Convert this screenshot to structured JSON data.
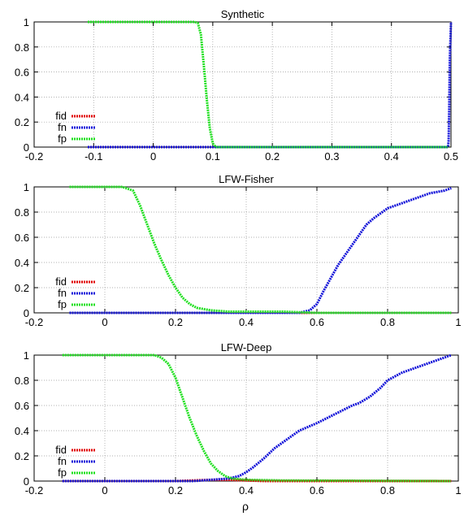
{
  "colors": {
    "fid": "#e00000",
    "fn": "#1010d8",
    "fp": "#20e020"
  },
  "xlabel": "ρ",
  "chart_data": [
    {
      "type": "line",
      "title": "Synthetic",
      "xlim": [
        -0.2,
        0.5
      ],
      "ylim": [
        0,
        1
      ],
      "xticks": [
        -0.2,
        -0.1,
        0,
        0.1,
        0.2,
        0.3,
        0.4,
        0.5
      ],
      "xtick_labels": [
        "-0.2",
        "-0.1",
        "0",
        "0.1",
        "0.2",
        "0.3",
        "0.4",
        "0.5"
      ],
      "yticks": [
        0,
        0.2,
        0.4,
        0.6,
        0.8,
        1
      ],
      "ytick_labels": [
        "0",
        "0.2",
        "0.4",
        "0.6",
        "0.8",
        "1"
      ],
      "grid": true,
      "legend_position": "bottom-left",
      "series": [
        {
          "name": "fid",
          "color_key": "fid",
          "points": [
            [
              -0.11,
              0
            ],
            [
              0.495,
              0
            ]
          ]
        },
        {
          "name": "fn",
          "color_key": "fn",
          "points": [
            [
              -0.11,
              0
            ],
            [
              0.495,
              0
            ],
            [
              0.496,
              0.05
            ],
            [
              0.497,
              0.3
            ],
            [
              0.498,
              0.7
            ],
            [
              0.5,
              1
            ]
          ]
        },
        {
          "name": "fp",
          "color_key": "fp",
          "points": [
            [
              -0.11,
              1
            ],
            [
              0.07,
              1
            ],
            [
              0.075,
              0.99
            ],
            [
              0.08,
              0.9
            ],
            [
              0.085,
              0.65
            ],
            [
              0.09,
              0.38
            ],
            [
              0.095,
              0.15
            ],
            [
              0.1,
              0.03
            ],
            [
              0.105,
              0
            ],
            [
              0.495,
              0
            ]
          ]
        }
      ]
    },
    {
      "type": "line",
      "title": "LFW-Fisher",
      "xlim": [
        -0.2,
        1
      ],
      "ylim": [
        0,
        1
      ],
      "xticks": [
        -0.2,
        0,
        0.2,
        0.4,
        0.6,
        0.8,
        1
      ],
      "xtick_labels": [
        "-0.2",
        "0",
        "0.2",
        "0.4",
        "0.6",
        "0.8",
        "1"
      ],
      "yticks": [
        0,
        0.2,
        0.4,
        0.6,
        0.8,
        1
      ],
      "ytick_labels": [
        "0",
        "0.2",
        "0.4",
        "0.6",
        "0.8",
        "1"
      ],
      "grid": true,
      "legend_position": "bottom-left",
      "series": [
        {
          "name": "fid",
          "color_key": "fid",
          "points": [
            [
              -0.1,
              0
            ],
            [
              0.98,
              0
            ]
          ]
        },
        {
          "name": "fn",
          "color_key": "fn",
          "points": [
            [
              -0.1,
              0
            ],
            [
              0.55,
              0
            ],
            [
              0.58,
              0.02
            ],
            [
              0.6,
              0.07
            ],
            [
              0.62,
              0.18
            ],
            [
              0.64,
              0.28
            ],
            [
              0.66,
              0.38
            ],
            [
              0.68,
              0.46
            ],
            [
              0.7,
              0.54
            ],
            [
              0.72,
              0.62
            ],
            [
              0.74,
              0.7
            ],
            [
              0.76,
              0.75
            ],
            [
              0.78,
              0.79
            ],
            [
              0.8,
              0.83
            ],
            [
              0.84,
              0.87
            ],
            [
              0.88,
              0.91
            ],
            [
              0.92,
              0.95
            ],
            [
              0.96,
              0.97
            ],
            [
              0.98,
              0.99
            ]
          ]
        },
        {
          "name": "fp",
          "color_key": "fp",
          "points": [
            [
              -0.1,
              1
            ],
            [
              0.05,
              1
            ],
            [
              0.08,
              0.97
            ],
            [
              0.1,
              0.85
            ],
            [
              0.12,
              0.7
            ],
            [
              0.14,
              0.55
            ],
            [
              0.16,
              0.42
            ],
            [
              0.18,
              0.3
            ],
            [
              0.2,
              0.2
            ],
            [
              0.22,
              0.12
            ],
            [
              0.24,
              0.07
            ],
            [
              0.26,
              0.04
            ],
            [
              0.3,
              0.02
            ],
            [
              0.35,
              0.01
            ],
            [
              0.4,
              0.01
            ],
            [
              0.5,
              0.01
            ],
            [
              0.6,
              0
            ],
            [
              0.98,
              0
            ]
          ]
        }
      ]
    },
    {
      "type": "line",
      "title": "LFW-Deep",
      "xlim": [
        -0.2,
        1
      ],
      "ylim": [
        0,
        1
      ],
      "xticks": [
        -0.2,
        0,
        0.2,
        0.4,
        0.6,
        0.8,
        1
      ],
      "xtick_labels": [
        "-0.2",
        "0",
        "0.2",
        "0.4",
        "0.6",
        "0.8",
        "1"
      ],
      "yticks": [
        0,
        0.2,
        0.4,
        0.6,
        0.8,
        1
      ],
      "ytick_labels": [
        "0",
        "0.2",
        "0.4",
        "0.6",
        "0.8",
        "1"
      ],
      "grid": true,
      "legend_position": "bottom-left",
      "series": [
        {
          "name": "fid",
          "color_key": "fid",
          "points": [
            [
              -0.12,
              0
            ],
            [
              0.2,
              0
            ],
            [
              0.25,
              0.005
            ],
            [
              0.3,
              0.01
            ],
            [
              0.35,
              0.01
            ],
            [
              0.4,
              0.005
            ],
            [
              0.45,
              0
            ],
            [
              0.98,
              0
            ]
          ]
        },
        {
          "name": "fn",
          "color_key": "fn",
          "points": [
            [
              -0.12,
              0
            ],
            [
              0.25,
              0
            ],
            [
              0.3,
              0.01
            ],
            [
              0.35,
              0.02
            ],
            [
              0.38,
              0.04
            ],
            [
              0.4,
              0.07
            ],
            [
              0.42,
              0.11
            ],
            [
              0.45,
              0.18
            ],
            [
              0.48,
              0.26
            ],
            [
              0.52,
              0.34
            ],
            [
              0.55,
              0.4
            ],
            [
              0.6,
              0.46
            ],
            [
              0.65,
              0.53
            ],
            [
              0.7,
              0.6
            ],
            [
              0.72,
              0.62
            ],
            [
              0.75,
              0.67
            ],
            [
              0.78,
              0.74
            ],
            [
              0.8,
              0.8
            ],
            [
              0.84,
              0.86
            ],
            [
              0.88,
              0.9
            ],
            [
              0.92,
              0.94
            ],
            [
              0.96,
              0.98
            ],
            [
              0.98,
              1
            ]
          ]
        },
        {
          "name": "fp",
          "color_key": "fp",
          "points": [
            [
              -0.12,
              1
            ],
            [
              0.14,
              1
            ],
            [
              0.16,
              0.98
            ],
            [
              0.18,
              0.93
            ],
            [
              0.2,
              0.82
            ],
            [
              0.22,
              0.66
            ],
            [
              0.24,
              0.5
            ],
            [
              0.26,
              0.36
            ],
            [
              0.28,
              0.24
            ],
            [
              0.3,
              0.14
            ],
            [
              0.32,
              0.08
            ],
            [
              0.34,
              0.04
            ],
            [
              0.36,
              0.02
            ],
            [
              0.4,
              0.01
            ],
            [
              0.5,
              0.005
            ],
            [
              0.98,
              0
            ]
          ]
        }
      ]
    }
  ]
}
